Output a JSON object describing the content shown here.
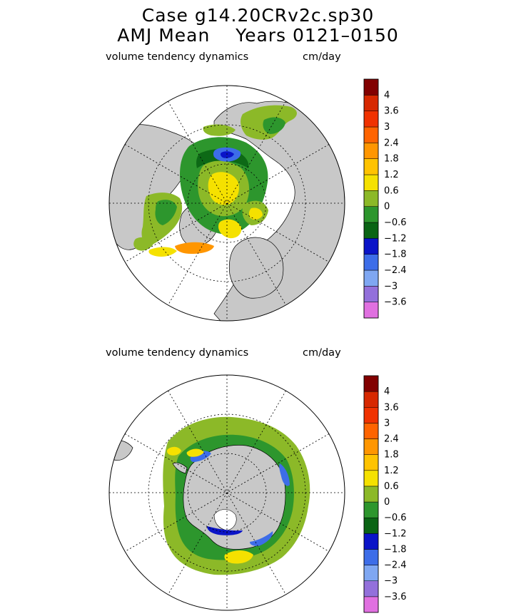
{
  "title": {
    "line1": "Case g14.20CRv2c.sp30",
    "line2": "AMJ Mean    Years 0121–0150"
  },
  "colors": {
    "land": "#c8c8c8",
    "ocean": "#ffffff",
    "colorbar": [
      "#e070e0",
      "#9370db",
      "#7fa7f2",
      "#3d6de8",
      "#0a14c8",
      "#0a6414",
      "#2d962d",
      "#8cb928",
      "#f5e100",
      "#ffc300",
      "#ff9600",
      "#ff6400",
      "#f03200",
      "#d72800",
      "#820000"
    ]
  },
  "panels": [
    {
      "name": "north",
      "field_label": "volume tendency dynamics",
      "units": "cm/day",
      "colorbar_labels": [
        "4",
        "3.6",
        "3",
        "2.4",
        "1.8",
        "1.2",
        "0.6",
        "0",
        "−0.6",
        "−1.2",
        "−1.8",
        "−2.4",
        "−3",
        "−3.6"
      ]
    },
    {
      "name": "south",
      "field_label": "volume tendency dynamics",
      "units": "cm/day",
      "colorbar_labels": [
        "4",
        "3.6",
        "3",
        "2.4",
        "1.8",
        "1.2",
        "0.6",
        "0",
        "−0.6",
        "−1.2",
        "−1.8",
        "−2.4",
        "−3",
        "−3.6"
      ]
    }
  ]
}
